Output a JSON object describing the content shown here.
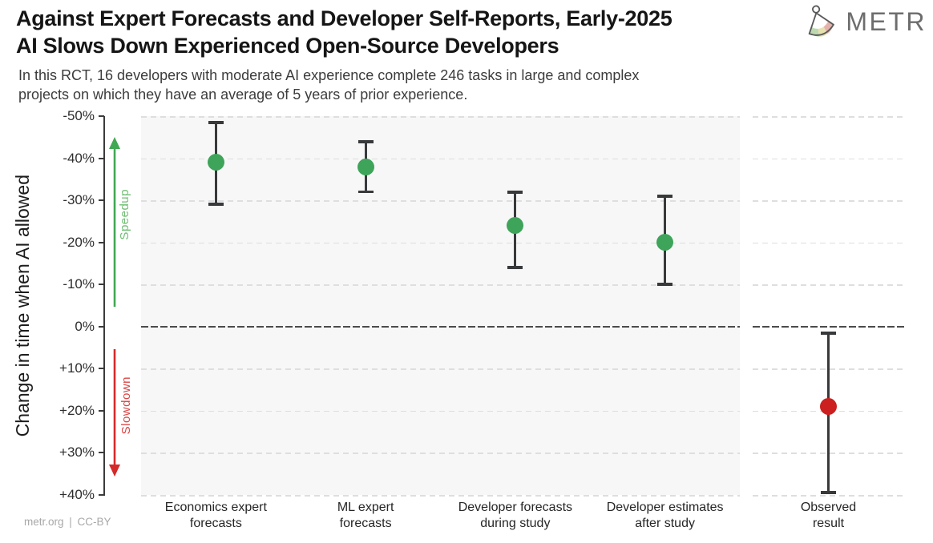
{
  "header": {
    "title_line1": "Against Expert Forecasts and Developer Self-Reports, Early-2025",
    "title_line2": "AI Slows Down Experienced Open-Source Developers",
    "subtitle_line1": "In this RCT, 16 developers with moderate AI experience complete 246 tasks in large and complex",
    "subtitle_line2": "projects on which they have an average of 5 years of prior experience.",
    "logo_text": "METR"
  },
  "footer": {
    "attribution": "metr.org | CC-BY"
  },
  "colors": {
    "title": "#151515",
    "subtitle": "#3c3c3c",
    "axis_text": "#2e2e2e",
    "panel_bg": "#f7f7f7",
    "grid": "#dedede",
    "zero_line": "#4b4b4b",
    "bar": "#37393b",
    "green": "#3ea45a",
    "red": "#cc2020",
    "speedup_arrow": "#41a854",
    "speedup_text": "#6fbe73",
    "slowdown_arrow": "#d42a2a",
    "slowdown_text": "#dd4444",
    "logo_text": "#6d6d6d",
    "footer_text": "#a8a8a8"
  },
  "chart_data": {
    "type": "scatter",
    "subtype": "point-estimates-with-error-bars",
    "title": "Against Expert Forecasts and Developer Self-Reports, Early-2025 AI Slows Down Experienced Open-Source Developers",
    "subtitle": "In this RCT, 16 developers with moderate AI experience complete 246 tasks in large and complex projects on which they have an average of 5 years of prior experience.",
    "ylabel": "Change in time when AI allowed",
    "xlabel": "",
    "ylim": [
      -50,
      40
    ],
    "y_axis_inverted": true,
    "grid": true,
    "legend": "none",
    "zero_line": 0,
    "yticks": [
      {
        "value": -50,
        "label": "-50%"
      },
      {
        "value": -40,
        "label": "-40%"
      },
      {
        "value": -30,
        "label": "-30%"
      },
      {
        "value": -20,
        "label": "-20%"
      },
      {
        "value": -10,
        "label": "-10%"
      },
      {
        "value": 0,
        "label": "0%"
      },
      {
        "value": 10,
        "label": "+10%"
      },
      {
        "value": 20,
        "label": "+20%"
      },
      {
        "value": 30,
        "label": "+30%"
      },
      {
        "value": 40,
        "label": "+40%"
      }
    ],
    "annotations": [
      {
        "text": "Speedup",
        "direction": "up",
        "color_key": "speedup_text"
      },
      {
        "text": "Slowdown",
        "direction": "down",
        "color_key": "slowdown_text"
      }
    ],
    "points": [
      {
        "category": "Economics expert forecasts",
        "label_lines": [
          "Economics expert",
          "forecasts"
        ],
        "value": -39,
        "ci": [
          -48.5,
          -29
        ],
        "panel": 0,
        "color_key": "green"
      },
      {
        "category": "ML expert forecasts",
        "label_lines": [
          "ML expert",
          "forecasts"
        ],
        "value": -38,
        "ci": [
          -44,
          -32
        ],
        "panel": 0,
        "color_key": "green"
      },
      {
        "category": "Developer forecasts during study",
        "label_lines": [
          "Developer forecasts",
          "during study"
        ],
        "value": -24,
        "ci": [
          -32,
          -14
        ],
        "panel": 0,
        "color_key": "green"
      },
      {
        "category": "Developer estimates after study",
        "label_lines": [
          "Developer estimates",
          "after study"
        ],
        "value": -20,
        "ci": [
          -31,
          -10
        ],
        "panel": 0,
        "color_key": "green"
      },
      {
        "category": "Observed result",
        "label_lines": [
          "Observed",
          "result"
        ],
        "value": 19,
        "ci": [
          1.5,
          39.5
        ],
        "panel": 1,
        "color_key": "red"
      }
    ]
  }
}
